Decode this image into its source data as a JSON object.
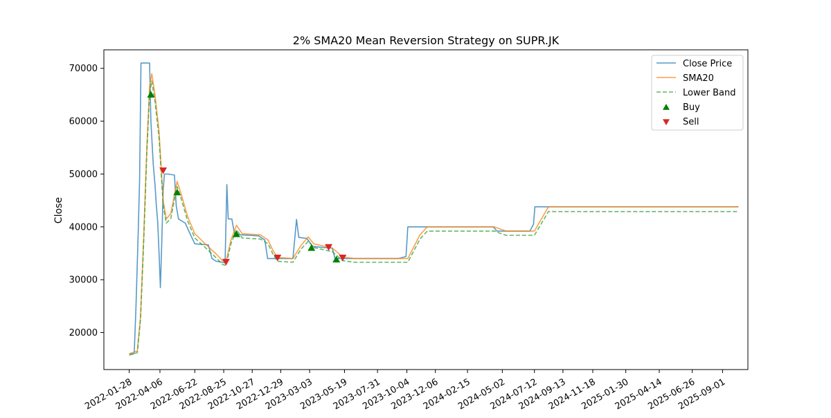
{
  "chart_data": {
    "type": "line",
    "title": "2% SMA20 Mean Reversion Strategy on SUPR.JK",
    "xlabel": "",
    "ylabel": "Close",
    "x_ticks": [
      "2022-01-28",
      "2022-04-06",
      "2022-06-22",
      "2022-08-25",
      "2022-10-27",
      "2022-12-29",
      "2023-03-03",
      "2023-05-19",
      "2023-07-31",
      "2023-10-04",
      "2023-12-06",
      "2024-02-15",
      "2024-05-02",
      "2024-07-12",
      "2024-09-13",
      "2024-11-18",
      "2025-01-30",
      "2025-04-14",
      "2025-06-26",
      "2025-09-01"
    ],
    "y_ticks": [
      20000,
      30000,
      40000,
      50000,
      60000,
      70000
    ],
    "xlim": [
      "2021-12-03",
      "2025-10-27"
    ],
    "ylim": [
      13000,
      73500
    ],
    "grid": false,
    "legend_position": "top-right",
    "series": [
      {
        "name": "Close Price",
        "color": "#1f77b4",
        "style": "solid",
        "points": [
          [
            "2022-01-28",
            16000
          ],
          [
            "2022-02-08",
            16000
          ],
          [
            "2022-02-12",
            25000
          ],
          [
            "2022-02-17",
            39000
          ],
          [
            "2022-02-20",
            49000
          ],
          [
            "2022-02-23",
            71000
          ],
          [
            "2022-03-14",
            71000
          ],
          [
            "2022-03-17",
            60000
          ],
          [
            "2022-03-22",
            52000
          ],
          [
            "2022-03-26",
            48000
          ],
          [
            "2022-03-29",
            44000
          ],
          [
            "2022-04-01",
            41000
          ],
          [
            "2022-04-04",
            35000
          ],
          [
            "2022-04-07",
            28500
          ],
          [
            "2022-04-10",
            37000
          ],
          [
            "2022-04-13",
            47000
          ],
          [
            "2022-04-16",
            50000
          ],
          [
            "2022-04-24",
            50000
          ],
          [
            "2022-05-08",
            49800
          ],
          [
            "2022-05-12",
            44000
          ],
          [
            "2022-05-17",
            41500
          ],
          [
            "2022-06-01",
            40700
          ],
          [
            "2022-06-10",
            39000
          ],
          [
            "2022-06-22",
            36800
          ],
          [
            "2022-07-22",
            36600
          ],
          [
            "2022-07-30",
            34000
          ],
          [
            "2022-08-08",
            33500
          ],
          [
            "2022-08-22",
            33300
          ],
          [
            "2022-08-28",
            33200
          ],
          [
            "2022-09-01",
            48000
          ],
          [
            "2022-09-04",
            41500
          ],
          [
            "2022-09-12",
            41500
          ],
          [
            "2022-09-18",
            38600
          ],
          [
            "2022-10-02",
            38500
          ],
          [
            "2022-11-10",
            38300
          ],
          [
            "2022-11-24",
            37500
          ],
          [
            "2022-11-30",
            34000
          ],
          [
            "2022-12-14",
            34000
          ],
          [
            "2022-12-27",
            34000
          ],
          [
            "2023-01-09",
            34000
          ],
          [
            "2023-01-25",
            34000
          ],
          [
            "2023-02-02",
            41400
          ],
          [
            "2023-02-07",
            38000
          ],
          [
            "2023-02-25",
            37800
          ],
          [
            "2023-03-10",
            36300
          ],
          [
            "2023-04-01",
            36100
          ],
          [
            "2023-04-22",
            36000
          ],
          [
            "2023-04-28",
            34000
          ],
          [
            "2023-06-01",
            34000
          ],
          [
            "2023-09-15",
            34000
          ],
          [
            "2023-10-02",
            34400
          ],
          [
            "2023-10-06",
            40000
          ],
          [
            "2023-12-01",
            40000
          ],
          [
            "2024-04-12",
            40000
          ],
          [
            "2024-04-20",
            39200
          ],
          [
            "2024-07-02",
            39200
          ],
          [
            "2024-07-10",
            40500
          ],
          [
            "2024-07-13",
            43800
          ],
          [
            "2025-10-06",
            43800
          ]
        ]
      },
      {
        "name": "SMA20",
        "color": "#ff7f0e",
        "style": "solid",
        "points": [
          [
            "2022-01-28",
            16000
          ],
          [
            "2022-02-15",
            16500
          ],
          [
            "2022-02-22",
            23000
          ],
          [
            "2022-03-01",
            38000
          ],
          [
            "2022-03-08",
            55000
          ],
          [
            "2022-03-14",
            66500
          ],
          [
            "2022-03-19",
            69000
          ],
          [
            "2022-03-26",
            65000
          ],
          [
            "2022-04-04",
            58000
          ],
          [
            "2022-04-13",
            45000
          ],
          [
            "2022-04-20",
            41500
          ],
          [
            "2022-04-30",
            42500
          ],
          [
            "2022-05-09",
            46500
          ],
          [
            "2022-05-14",
            48600
          ],
          [
            "2022-05-22",
            46500
          ],
          [
            "2022-06-06",
            42000
          ],
          [
            "2022-06-22",
            38700
          ],
          [
            "2022-07-15",
            36800
          ],
          [
            "2022-08-09",
            34800
          ],
          [
            "2022-08-22",
            33600
          ],
          [
            "2022-08-30",
            33400
          ],
          [
            "2022-09-10",
            37500
          ],
          [
            "2022-09-22",
            40300
          ],
          [
            "2022-10-05",
            38700
          ],
          [
            "2022-11-14",
            38500
          ],
          [
            "2022-12-01",
            37500
          ],
          [
            "2022-12-12",
            35500
          ],
          [
            "2022-12-22",
            34200
          ],
          [
            "2023-01-25",
            34000
          ],
          [
            "2023-02-12",
            36500
          ],
          [
            "2023-02-28",
            38100
          ],
          [
            "2023-03-12",
            36800
          ],
          [
            "2023-04-22",
            36000
          ],
          [
            "2023-05-15",
            34300
          ],
          [
            "2023-06-10",
            34000
          ],
          [
            "2023-10-06",
            34000
          ],
          [
            "2023-11-02",
            38500
          ],
          [
            "2023-11-18",
            40000
          ],
          [
            "2024-04-14",
            40000
          ],
          [
            "2024-05-10",
            39200
          ],
          [
            "2024-07-12",
            39200
          ],
          [
            "2024-08-12",
            43800
          ],
          [
            "2025-10-06",
            43800
          ]
        ]
      },
      {
        "name": "Lower Band",
        "color": "#2ca02c",
        "style": "dashed",
        "points": [
          [
            "2022-01-28",
            15700
          ],
          [
            "2022-02-15",
            16200
          ],
          [
            "2022-02-22",
            22500
          ],
          [
            "2022-03-01",
            37200
          ],
          [
            "2022-03-08",
            53900
          ],
          [
            "2022-03-14",
            65200
          ],
          [
            "2022-03-19",
            67600
          ],
          [
            "2022-03-26",
            63700
          ],
          [
            "2022-04-04",
            56800
          ],
          [
            "2022-04-13",
            44100
          ],
          [
            "2022-04-20",
            40700
          ],
          [
            "2022-04-30",
            41600
          ],
          [
            "2022-05-09",
            45600
          ],
          [
            "2022-05-14",
            47600
          ],
          [
            "2022-05-22",
            45600
          ],
          [
            "2022-06-06",
            41200
          ],
          [
            "2022-06-22",
            37900
          ],
          [
            "2022-07-15",
            36100
          ],
          [
            "2022-08-09",
            34100
          ],
          [
            "2022-08-22",
            32900
          ],
          [
            "2022-08-30",
            32700
          ],
          [
            "2022-09-10",
            36800
          ],
          [
            "2022-09-22",
            39500
          ],
          [
            "2022-10-05",
            37900
          ],
          [
            "2022-11-14",
            37700
          ],
          [
            "2022-12-01",
            36800
          ],
          [
            "2022-12-12",
            34800
          ],
          [
            "2022-12-22",
            33500
          ],
          [
            "2023-01-25",
            33300
          ],
          [
            "2023-02-12",
            35800
          ],
          [
            "2023-02-28",
            37300
          ],
          [
            "2023-03-12",
            36100
          ],
          [
            "2023-04-22",
            35300
          ],
          [
            "2023-05-15",
            33600
          ],
          [
            "2023-06-10",
            33300
          ],
          [
            "2023-10-06",
            33300
          ],
          [
            "2023-11-02",
            37700
          ],
          [
            "2023-11-18",
            39200
          ],
          [
            "2024-04-14",
            39200
          ],
          [
            "2024-05-10",
            38400
          ],
          [
            "2024-07-12",
            38400
          ],
          [
            "2024-08-12",
            42900
          ],
          [
            "2025-10-06",
            42900
          ]
        ]
      }
    ],
    "markers": [
      {
        "name": "Buy",
        "color": "#008000",
        "symbol": "triangle-up",
        "points": [
          [
            "2022-03-17",
            65000
          ],
          [
            "2022-05-14",
            46500
          ],
          [
            "2022-09-22",
            38600
          ],
          [
            "2023-03-07",
            36000
          ],
          [
            "2023-05-01",
            33800
          ]
        ]
      },
      {
        "name": "Sell",
        "color": "#d62728",
        "symbol": "triangle-down",
        "points": [
          [
            "2022-04-13",
            50700
          ],
          [
            "2022-08-30",
            33400
          ],
          [
            "2022-12-22",
            34200
          ],
          [
            "2023-04-14",
            36200
          ],
          [
            "2023-05-15",
            34200
          ]
        ]
      }
    ]
  }
}
